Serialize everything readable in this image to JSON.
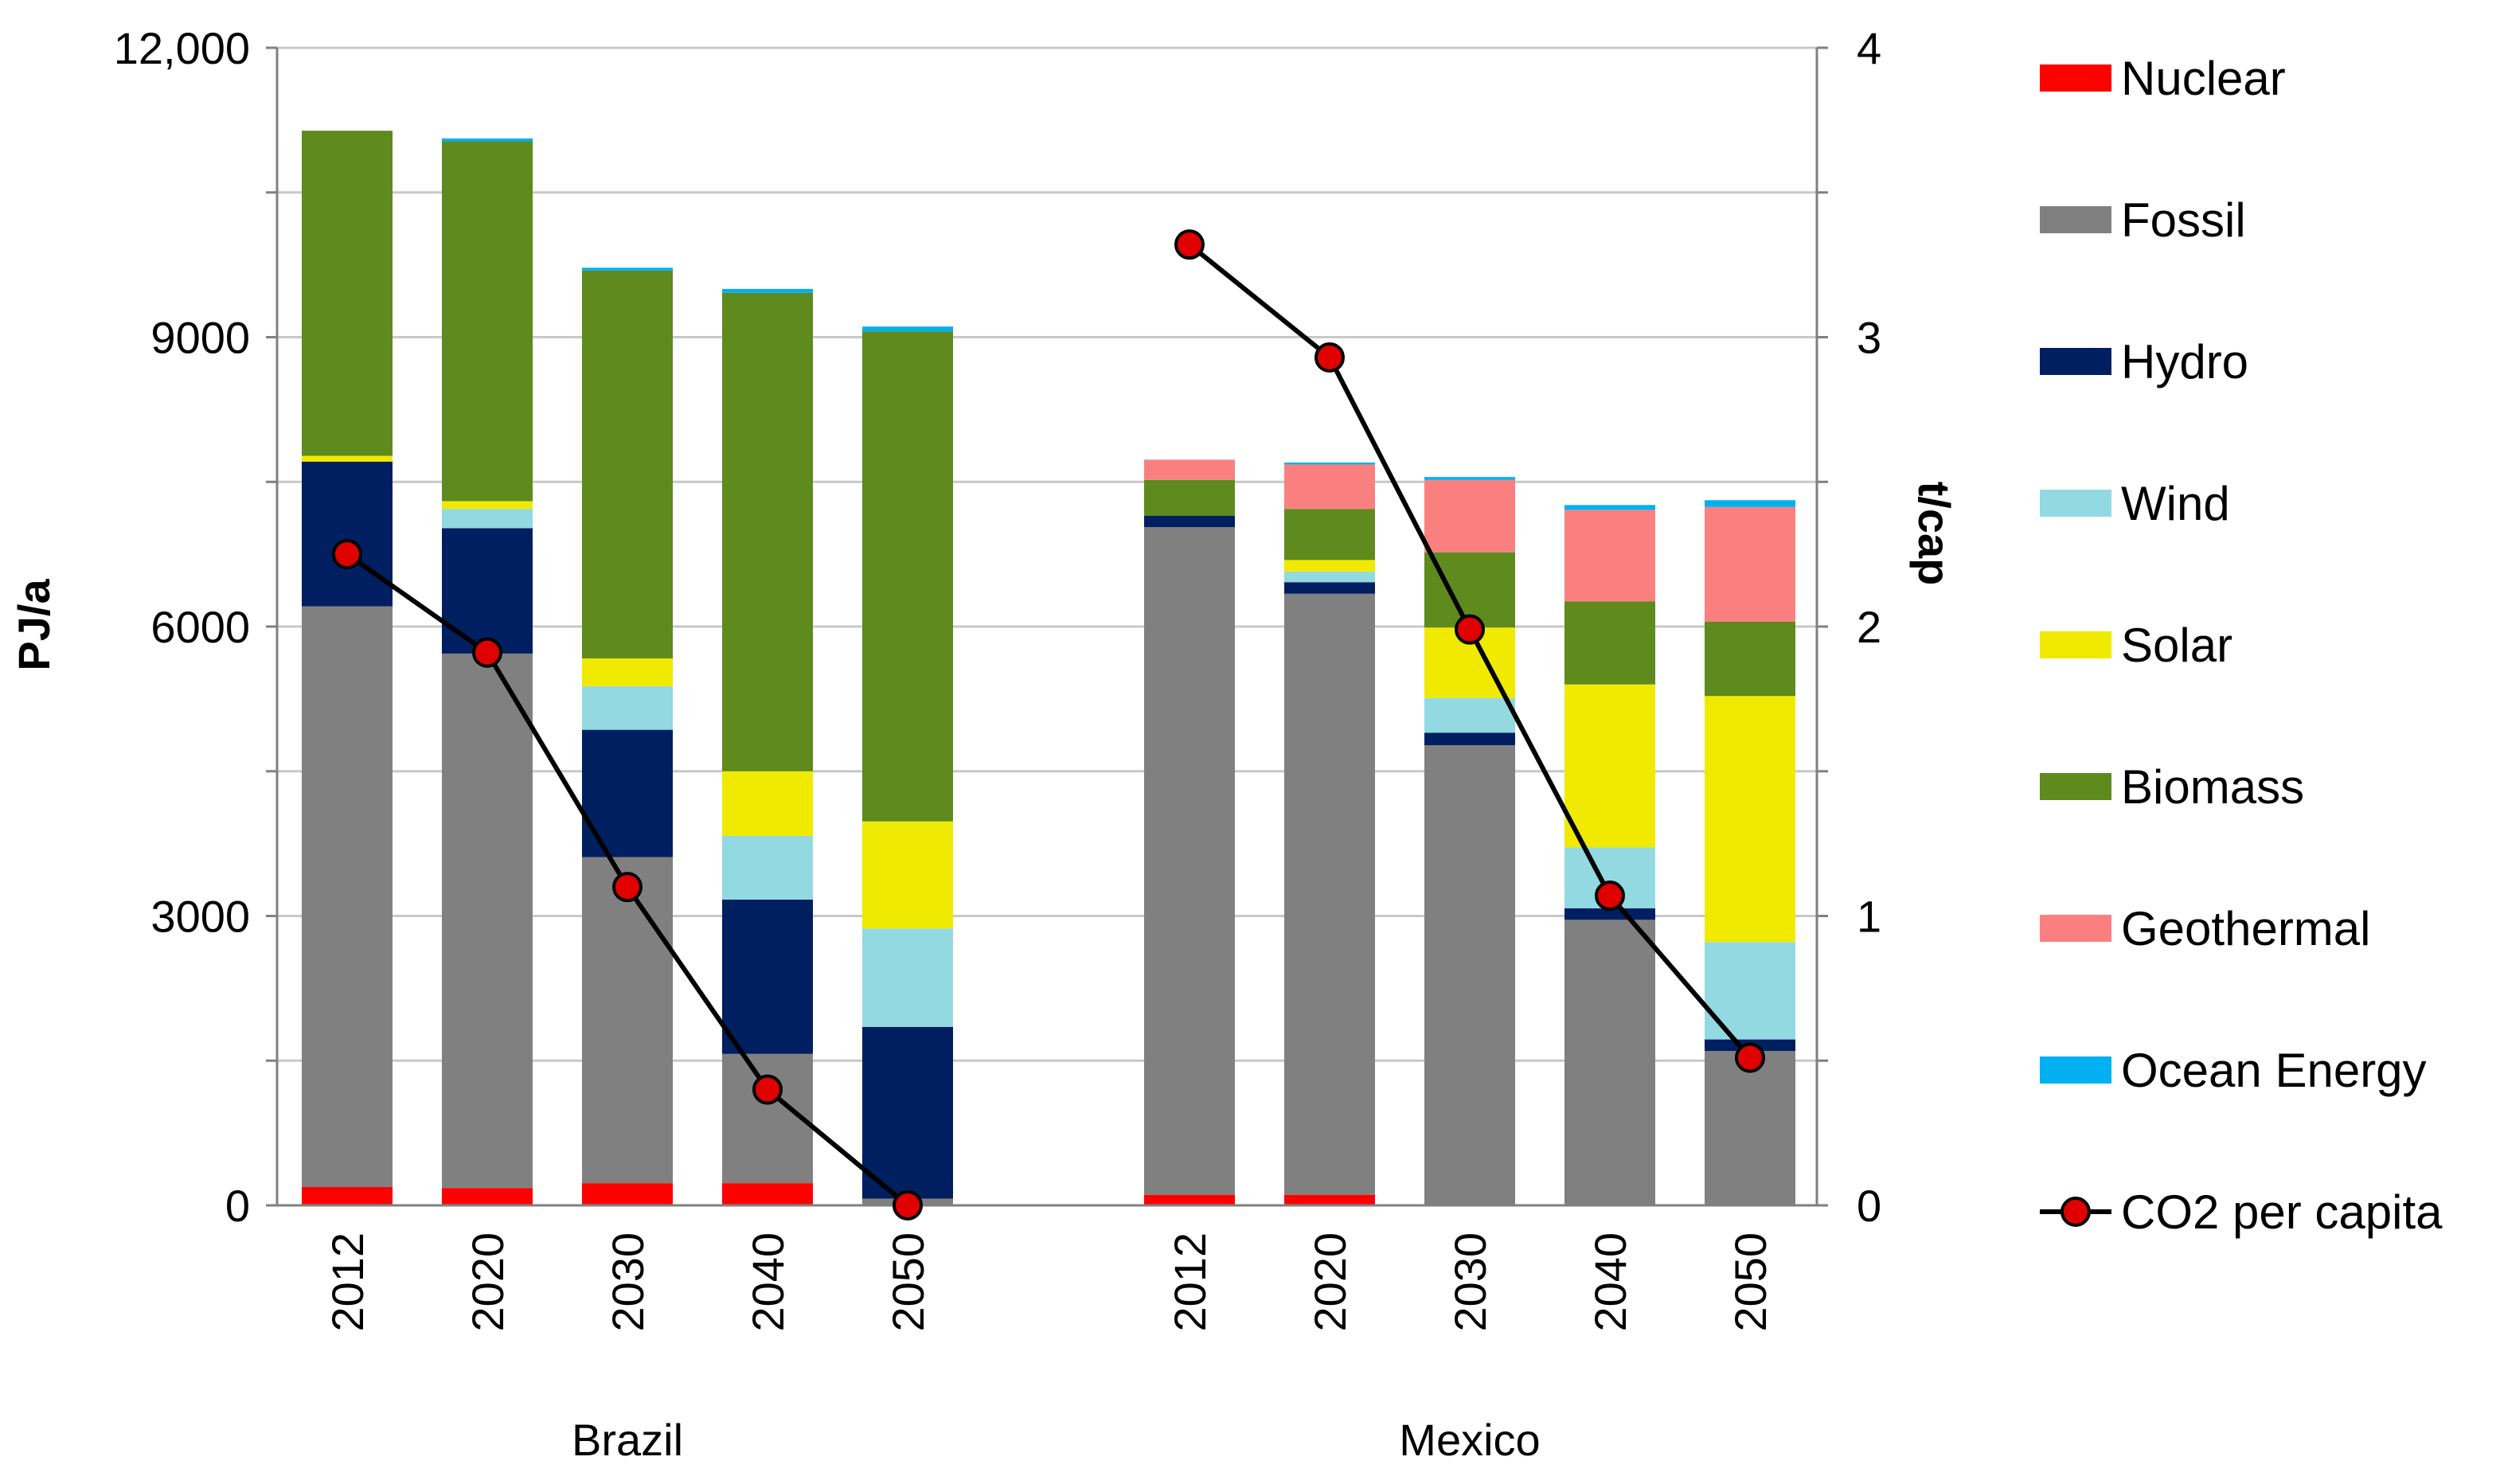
{
  "chart_data": {
    "type": "bar",
    "subtype": "stacked-bar-with-line",
    "groups": [
      "Brazil",
      "Mexico"
    ],
    "categories": [
      "2012",
      "2020",
      "2030",
      "2040",
      "2050"
    ],
    "ylabel": "PJ/a",
    "y2label": "t/cap",
    "ylim": [
      0,
      12000
    ],
    "y2lim": [
      0,
      4
    ],
    "yticks": [
      "0",
      "3000",
      "6000",
      "9000",
      "12,000"
    ],
    "y2ticks": [
      "0",
      "1",
      "2",
      "3",
      "4"
    ],
    "grid": true,
    "legend_position": "right",
    "colors": {
      "Nuclear": "#ff0000",
      "Fossil": "#808080",
      "Hydro": "#001f60",
      "Wind": "#92d9e2",
      "Solar": "#f0ea00",
      "Biomass": "#5e8a1e",
      "Geothermal": "#fa8080",
      "Ocean Energy": "#00b0f0",
      "CO2 per capita": "#e00000"
    },
    "series": [
      {
        "name": "Nuclear",
        "Brazil": [
          190,
          180,
          230,
          230,
          0
        ],
        "Mexico": [
          110,
          110,
          0,
          0,
          0
        ]
      },
      {
        "name": "Fossil",
        "Brazil": [
          6020,
          5540,
          3380,
          1340,
          70
        ],
        "Mexico": [
          6920,
          6230,
          4770,
          2960,
          1600
        ]
      },
      {
        "name": "Hydro",
        "Brazil": [
          1500,
          1300,
          1320,
          1600,
          1780
        ],
        "Mexico": [
          120,
          120,
          130,
          120,
          120
        ]
      },
      {
        "name": "Wind",
        "Brazil": [
          0,
          200,
          450,
          660,
          1020
        ],
        "Mexico": [
          0,
          110,
          360,
          630,
          1010
        ]
      },
      {
        "name": "Solar",
        "Brazil": [
          60,
          80,
          290,
          670,
          1110
        ],
        "Mexico": [
          0,
          120,
          730,
          1690,
          2550
        ]
      },
      {
        "name": "Biomass",
        "Brazil": [
          3370,
          3730,
          4020,
          4960,
          5080
        ],
        "Mexico": [
          370,
          530,
          780,
          860,
          770
        ]
      },
      {
        "name": "Geothermal",
        "Brazil": [
          0,
          0,
          0,
          0,
          0
        ],
        "Mexico": [
          210,
          460,
          750,
          950,
          1190
        ]
      },
      {
        "name": "Ocean Energy",
        "Brazil": [
          0,
          30,
          30,
          40,
          50
        ],
        "Mexico": [
          0,
          20,
          30,
          50,
          70
        ]
      }
    ],
    "line": {
      "name": "CO2 per capita",
      "axis": "right",
      "Brazil": [
        2.25,
        1.91,
        1.1,
        0.4,
        0.0
      ],
      "Mexico": [
        3.32,
        2.93,
        1.99,
        1.07,
        0.51
      ]
    },
    "legend": [
      "Nuclear",
      "Fossil",
      "Hydro",
      "Wind",
      "Solar",
      "Biomass",
      "Geothermal",
      "Ocean Energy",
      "CO2 per capita"
    ]
  }
}
